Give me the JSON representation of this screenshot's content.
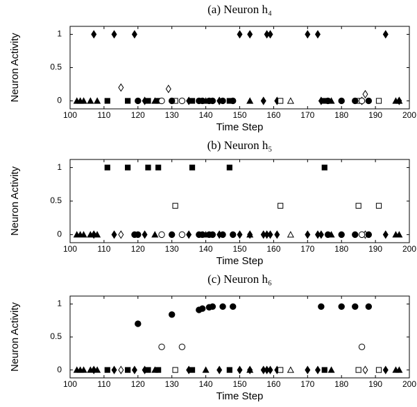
{
  "chart_data": [
    {
      "type": "scatter",
      "title": "(a) Neuron h₄",
      "xlabel": "Time Step",
      "ylabel": "Neuron Activity",
      "xlim": [
        100,
        200
      ],
      "ylim": [
        -0.12,
        1.12
      ],
      "xticks": [
        100,
        110,
        120,
        130,
        140,
        150,
        160,
        170,
        180,
        190,
        200
      ],
      "yticks": [
        0,
        0.5,
        1
      ],
      "series": [
        {
          "marker": "diamond",
          "filled": true,
          "color": "#000000",
          "x": [
            107,
            113,
            119,
            150,
            153,
            158,
            159,
            170,
            173,
            193,
            122,
            135,
            144,
            157,
            161,
            174,
            186,
            197
          ],
          "values": [
            1,
            1,
            1,
            1,
            1,
            1,
            1,
            1,
            1,
            1,
            0,
            0,
            0,
            0,
            0,
            0,
            0,
            0
          ]
        },
        {
          "marker": "diamond",
          "filled": false,
          "color": "#000000",
          "x": [
            115,
            129,
            187
          ],
          "values": [
            0.2,
            0.18,
            0.1
          ]
        },
        {
          "marker": "square",
          "filled": true,
          "color": "#000000",
          "x": [
            111,
            117,
            123,
            126,
            136,
            147,
            175
          ],
          "values": [
            0,
            0,
            0,
            0,
            0,
            0,
            0
          ]
        },
        {
          "marker": "square",
          "filled": false,
          "color": "#000000",
          "x": [
            131,
            162,
            185,
            191
          ],
          "values": [
            0,
            0,
            0,
            0
          ]
        },
        {
          "marker": "circle",
          "filled": true,
          "color": "#000000",
          "x": [
            120,
            130,
            138,
            139,
            141,
            142,
            145,
            148,
            176,
            180,
            184,
            188
          ],
          "values": [
            0,
            0,
            0,
            0,
            0,
            0,
            0,
            0,
            0,
            0,
            0,
            0
          ]
        },
        {
          "marker": "circle",
          "filled": false,
          "color": "#000000",
          "x": [
            127,
            133,
            186
          ],
          "values": [
            0,
            0,
            0
          ]
        },
        {
          "marker": "triangle",
          "filled": true,
          "color": "#000000",
          "x": [
            102,
            103,
            104,
            106,
            108,
            125,
            140,
            153,
            177,
            196,
            197
          ],
          "values": [
            0,
            0,
            0,
            0,
            0,
            0,
            0,
            0,
            0,
            0,
            0
          ]
        },
        {
          "marker": "triangle",
          "filled": false,
          "color": "#000000",
          "x": [
            165
          ],
          "values": [
            0
          ]
        }
      ]
    },
    {
      "type": "scatter",
      "title": "(b) Neuron h₅",
      "xlabel": "Time Step",
      "ylabel": "Neuron Activity",
      "xlim": [
        100,
        200
      ],
      "ylim": [
        -0.12,
        1.12
      ],
      "xticks": [
        100,
        110,
        120,
        130,
        140,
        150,
        160,
        170,
        180,
        190,
        200
      ],
      "yticks": [
        0,
        0.5,
        1
      ],
      "series": [
        {
          "marker": "diamond",
          "filled": true,
          "color": "#000000",
          "x": [
            107,
            113,
            122,
            135,
            144,
            150,
            153,
            157,
            158,
            159,
            161,
            170,
            173,
            174,
            193
          ],
          "values": [
            0,
            0,
            0,
            0,
            0,
            0,
            0,
            0,
            0,
            0,
            0,
            0,
            0,
            0,
            0
          ]
        },
        {
          "marker": "diamond",
          "filled": false,
          "color": "#000000",
          "x": [
            115,
            187
          ],
          "values": [
            0,
            0
          ]
        },
        {
          "marker": "square",
          "filled": true,
          "color": "#000000",
          "x": [
            111,
            117,
            123,
            126,
            136,
            147,
            175
          ],
          "values": [
            1,
            1,
            1,
            1,
            1,
            1,
            1
          ]
        },
        {
          "marker": "square",
          "filled": false,
          "color": "#000000",
          "x": [
            131,
            162,
            185,
            191
          ],
          "values": [
            0.43,
            0.43,
            0.43,
            0.43
          ]
        },
        {
          "marker": "circle",
          "filled": true,
          "color": "#000000",
          "x": [
            119,
            120,
            130,
            138,
            139,
            141,
            142,
            145,
            148,
            176,
            180,
            184,
            188
          ],
          "values": [
            0,
            0,
            0,
            0,
            0,
            0,
            0,
            0,
            0,
            0,
            0,
            0,
            0
          ]
        },
        {
          "marker": "circle",
          "filled": false,
          "color": "#000000",
          "x": [
            127,
            133,
            186
          ],
          "values": [
            0,
            0,
            0
          ]
        },
        {
          "marker": "triangle",
          "filled": true,
          "color": "#000000",
          "x": [
            102,
            103,
            104,
            106,
            108,
            125,
            140,
            153,
            177,
            196,
            197
          ],
          "values": [
            0,
            0,
            0,
            0,
            0,
            0,
            0,
            0,
            0,
            0,
            0
          ]
        },
        {
          "marker": "triangle",
          "filled": false,
          "color": "#000000",
          "x": [
            165
          ],
          "values": [
            0
          ]
        }
      ]
    },
    {
      "type": "scatter",
      "title": "(c) Neuron h₆",
      "xlabel": "Time Step",
      "ylabel": "Neuron Activity",
      "xlim": [
        100,
        200
      ],
      "ylim": [
        -0.12,
        1.12
      ],
      "xticks": [
        100,
        110,
        120,
        130,
        140,
        150,
        160,
        170,
        180,
        190,
        200
      ],
      "yticks": [
        0,
        0.5,
        1
      ],
      "series": [
        {
          "marker": "diamond",
          "filled": true,
          "color": "#000000",
          "x": [
            107,
            113,
            119,
            122,
            135,
            144,
            150,
            153,
            157,
            158,
            159,
            161,
            170,
            173,
            193
          ],
          "values": [
            0,
            0,
            0,
            0,
            0,
            0,
            0,
            0,
            0,
            0,
            0,
            0,
            0,
            0,
            0
          ]
        },
        {
          "marker": "diamond",
          "filled": false,
          "color": "#000000",
          "x": [
            115,
            187
          ],
          "values": [
            0,
            0
          ]
        },
        {
          "marker": "square",
          "filled": true,
          "color": "#000000",
          "x": [
            111,
            117,
            123,
            126,
            136,
            147,
            175
          ],
          "values": [
            0,
            0,
            0,
            0,
            0,
            0,
            0
          ]
        },
        {
          "marker": "square",
          "filled": false,
          "color": "#000000",
          "x": [
            131,
            162,
            185,
            191
          ],
          "values": [
            0,
            0,
            0,
            0
          ]
        },
        {
          "marker": "circle",
          "filled": true,
          "color": "#000000",
          "x": [
            120,
            130,
            138,
            139,
            141,
            142,
            145,
            148,
            174,
            180,
            184,
            188
          ],
          "values": [
            0.7,
            0.84,
            0.91,
            0.93,
            0.95,
            0.96,
            0.96,
            0.96,
            0.96,
            0.96,
            0.96,
            0.96
          ]
        },
        {
          "marker": "circle",
          "filled": false,
          "color": "#000000",
          "x": [
            127,
            133,
            186
          ],
          "values": [
            0.35,
            0.35,
            0.35
          ]
        },
        {
          "marker": "triangle",
          "filled": true,
          "color": "#000000",
          "x": [
            102,
            103,
            104,
            106,
            108,
            125,
            140,
            153,
            177,
            196,
            197
          ],
          "values": [
            0,
            0,
            0,
            0,
            0,
            0,
            0,
            0,
            0,
            0,
            0
          ]
        },
        {
          "marker": "triangle",
          "filled": false,
          "color": "#000000",
          "x": [
            165
          ],
          "values": [
            0
          ]
        }
      ]
    }
  ]
}
